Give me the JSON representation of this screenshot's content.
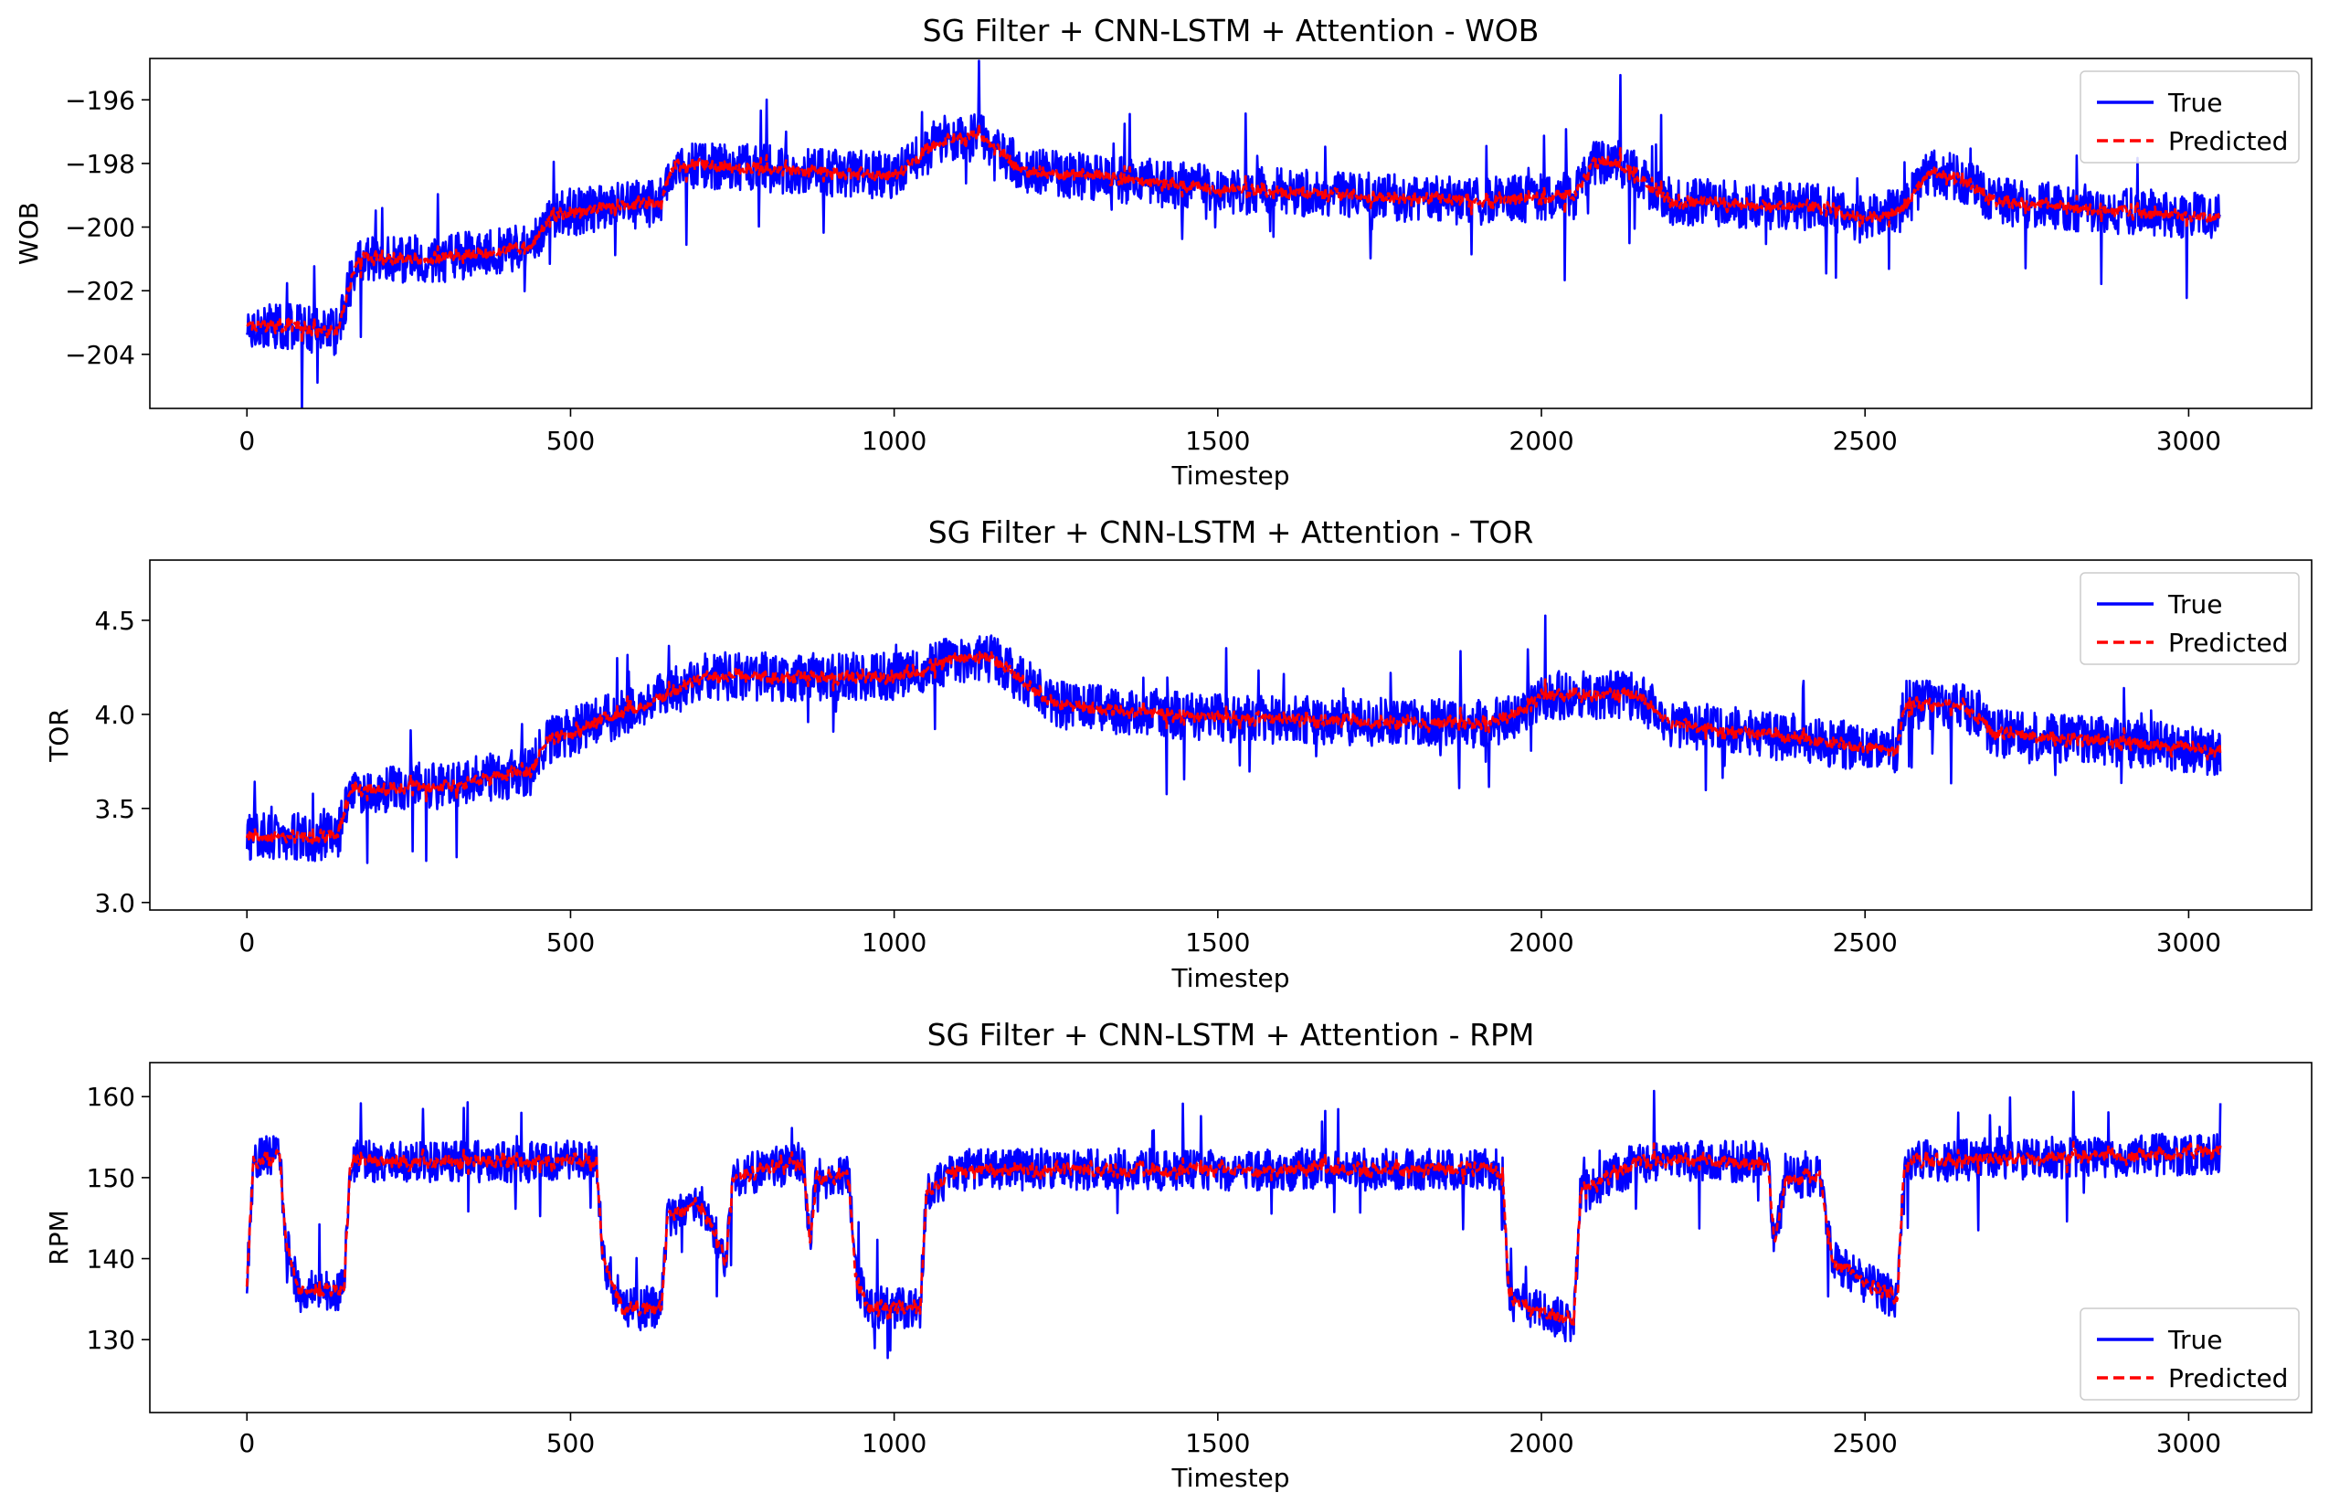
{
  "chart_data": [
    {
      "type": "line",
      "title": "SG Filter + CNN-LSTM + Attention - WOB",
      "xlabel": "Timestep",
      "ylabel": "WOB",
      "xlim": [
        -150,
        3190
      ],
      "ylim": [
        -205.7,
        -194.7
      ],
      "xticks": [
        0,
        500,
        1000,
        1500,
        2000,
        2500,
        3000
      ],
      "xtick_labels": [
        "0",
        "500",
        "1000",
        "1500",
        "2000",
        "2500",
        "3000"
      ],
      "yticks": [
        -204,
        -202,
        -200,
        -198,
        -196
      ],
      "ytick_labels": [
        "−204",
        "−202",
        "−200",
        "−198",
        "−196"
      ],
      "legend": {
        "position": "upper right",
        "labels": [
          "True",
          "Predicted"
        ]
      },
      "n_points": 3050,
      "noise": 0.75,
      "spike_prob": 0.02,
      "spike_size": 1.8,
      "pred_noise": 0.22,
      "seed": 17,
      "knots": [
        [
          0,
          -203.0
        ],
        [
          140,
          -203.3
        ],
        [
          170,
          -201.0
        ],
        [
          300,
          -201.0
        ],
        [
          440,
          -200.6
        ],
        [
          470,
          -199.6
        ],
        [
          640,
          -199.2
        ],
        [
          660,
          -198.0
        ],
        [
          1000,
          -198.4
        ],
        [
          1080,
          -197.2
        ],
        [
          1140,
          -197.2
        ],
        [
          1200,
          -198.2
        ],
        [
          1500,
          -198.8
        ],
        [
          1900,
          -199.2
        ],
        [
          2050,
          -199.0
        ],
        [
          2080,
          -198.0
        ],
        [
          2120,
          -198.0
        ],
        [
          2200,
          -199.2
        ],
        [
          2450,
          -199.4
        ],
        [
          2500,
          -199.8
        ],
        [
          2560,
          -199.4
        ],
        [
          2600,
          -198.3
        ],
        [
          2650,
          -198.5
        ],
        [
          2700,
          -199.2
        ],
        [
          2900,
          -199.5
        ],
        [
          3050,
          -199.7
        ]
      ],
      "series": [
        {
          "name": "True",
          "color": "#0000ff",
          "style": "solid"
        },
        {
          "name": "Predicted",
          "color": "#ff0000",
          "style": "dashed"
        }
      ]
    },
    {
      "type": "line",
      "title": "SG Filter + CNN-LSTM + Attention - TOR",
      "xlabel": "Timestep",
      "ylabel": "TOR",
      "xlim": [
        -150,
        3190
      ],
      "ylim": [
        2.96,
        4.82
      ],
      "xticks": [
        0,
        500,
        1000,
        1500,
        2000,
        2500,
        3000
      ],
      "xtick_labels": [
        "0",
        "500",
        "1000",
        "1500",
        "2000",
        "2500",
        "3000"
      ],
      "yticks": [
        3.0,
        3.5,
        4.0,
        4.5
      ],
      "ytick_labels": [
        "3.0",
        "3.5",
        "4.0",
        "4.5"
      ],
      "legend": {
        "position": "upper right",
        "labels": [
          "True",
          "Predicted"
        ]
      },
      "n_points": 3050,
      "noise": 0.13,
      "spike_prob": 0.02,
      "spike_size": 0.28,
      "pred_noise": 0.035,
      "seed": 29,
      "knots": [
        [
          0,
          3.35
        ],
        [
          140,
          3.35
        ],
        [
          160,
          3.6
        ],
        [
          300,
          3.62
        ],
        [
          440,
          3.7
        ],
        [
          460,
          3.85
        ],
        [
          650,
          4.1
        ],
        [
          700,
          4.2
        ],
        [
          1000,
          4.2
        ],
        [
          1100,
          4.3
        ],
        [
          1150,
          4.3
        ],
        [
          1250,
          4.05
        ],
        [
          1500,
          3.98
        ],
        [
          1900,
          3.95
        ],
        [
          1950,
          3.98
        ],
        [
          2000,
          4.1
        ],
        [
          2150,
          4.1
        ],
        [
          2200,
          3.95
        ],
        [
          2450,
          3.85
        ],
        [
          2550,
          3.8
        ],
        [
          2560,
          4.05
        ],
        [
          2650,
          4.05
        ],
        [
          2700,
          3.9
        ],
        [
          2900,
          3.85
        ],
        [
          3050,
          3.8
        ]
      ],
      "series": [
        {
          "name": "True",
          "color": "#0000ff",
          "style": "solid"
        },
        {
          "name": "Predicted",
          "color": "#ff0000",
          "style": "dashed"
        }
      ]
    },
    {
      "type": "line",
      "title": "SG Filter + CNN-LSTM + Attention - RPM",
      "xlabel": "Timestep",
      "ylabel": "RPM",
      "xlim": [
        -150,
        3190
      ],
      "ylim": [
        121.0,
        164.2
      ],
      "xticks": [
        0,
        500,
        1000,
        1500,
        2000,
        2500,
        3000
      ],
      "xtick_labels": [
        "0",
        "500",
        "1000",
        "1500",
        "2000",
        "2500",
        "3000"
      ],
      "yticks": [
        130,
        140,
        150,
        160
      ],
      "ytick_labels": [
        "130",
        "140",
        "150",
        "160"
      ],
      "legend": {
        "position": "lower right",
        "labels": [
          "True",
          "Predicted"
        ]
      },
      "n_points": 3050,
      "noise": 2.6,
      "spike_prob": 0.025,
      "spike_size": 6.5,
      "pred_noise": 1.2,
      "seed": 43,
      "knots": [
        [
          0,
          137
        ],
        [
          10,
          152
        ],
        [
          50,
          153
        ],
        [
          60,
          142
        ],
        [
          80,
          136
        ],
        [
          150,
          136
        ],
        [
          160,
          152
        ],
        [
          540,
          152
        ],
        [
          550,
          140
        ],
        [
          580,
          134
        ],
        [
          640,
          134
        ],
        [
          650,
          145
        ],
        [
          700,
          147
        ],
        [
          740,
          140
        ],
        [
          750,
          150
        ],
        [
          860,
          152
        ],
        [
          870,
          142
        ],
        [
          880,
          150
        ],
        [
          930,
          150
        ],
        [
          940,
          138
        ],
        [
          960,
          134
        ],
        [
          1040,
          134
        ],
        [
          1050,
          148
        ],
        [
          1100,
          151
        ],
        [
          1940,
          151
        ],
        [
          1950,
          135
        ],
        [
          2050,
          132
        ],
        [
          2060,
          148
        ],
        [
          2150,
          152
        ],
        [
          2350,
          152
        ],
        [
          2360,
          142
        ],
        [
          2380,
          150
        ],
        [
          2430,
          150
        ],
        [
          2450,
          140
        ],
        [
          2500,
          137
        ],
        [
          2550,
          135
        ],
        [
          2560,
          152
        ],
        [
          3050,
          153
        ]
      ],
      "series": [
        {
          "name": "True",
          "color": "#0000ff",
          "style": "solid"
        },
        {
          "name": "Predicted",
          "color": "#ff0000",
          "style": "dashed"
        }
      ]
    }
  ]
}
